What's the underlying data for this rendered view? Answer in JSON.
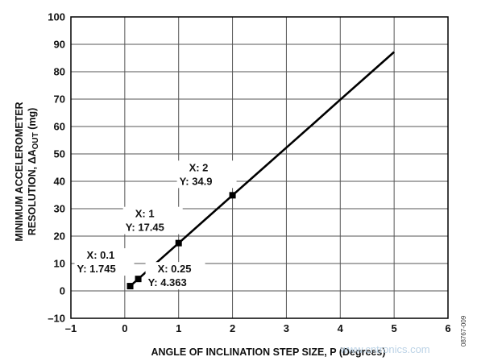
{
  "chart_data": {
    "type": "line",
    "xlabel": "ANGLE OF INCLINATION STEP SIZE, P (Degrees)",
    "ylabel_line1": "MINIMUM ACCELEROMETER",
    "ylabel_line2": "RESOLUTION, ΔA",
    "ylabel_sub": "OUT",
    "ylabel_unit": " (mg)",
    "xlim": [
      -1,
      6
    ],
    "ylim": [
      -10,
      100
    ],
    "xticks": [
      -1,
      0,
      1,
      2,
      3,
      4,
      5,
      6
    ],
    "yticks": [
      -10,
      0,
      10,
      20,
      30,
      40,
      50,
      60,
      70,
      80,
      90,
      100
    ],
    "grid": true,
    "series": [
      {
        "x": [
          0.1,
          0.25,
          0.5,
          1,
          1.5,
          2,
          2.5,
          3,
          3.5,
          4,
          4.5,
          5
        ],
        "y": [
          1.745,
          4.363,
          8.725,
          17.45,
          26.17,
          34.9,
          43.6,
          52.3,
          61.0,
          69.8,
          78.5,
          87.2
        ]
      }
    ],
    "markers": [
      {
        "x": 0.1,
        "y": 1.745,
        "label_x": "X: 0.1",
        "label_y": "Y: 1.745"
      },
      {
        "x": 0.25,
        "y": 4.363,
        "label_x": "X: 0.25",
        "label_y": "Y: 4.363"
      },
      {
        "x": 1,
        "y": 17.45,
        "label_x": "X: 1",
        "label_y": "Y: 17.45"
      },
      {
        "x": 2,
        "y": 34.9,
        "label_x": "X: 2",
        "label_y": "Y: 34.9"
      }
    ]
  },
  "figure_id": "08767-009",
  "watermark": "www.cntronics.com"
}
